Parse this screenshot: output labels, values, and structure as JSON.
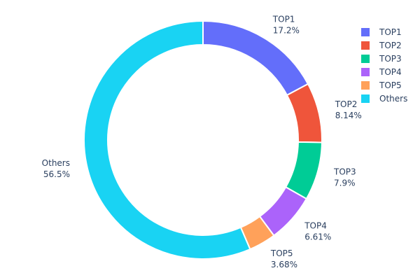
{
  "chart_data": {
    "type": "pie",
    "hole": true,
    "categories": [
      "TOP1",
      "TOP2",
      "TOP3",
      "TOP4",
      "TOP5",
      "Others"
    ],
    "values": [
      17.2,
      8.14,
      7.9,
      6.61,
      3.68,
      56.5
    ],
    "percent_labels": [
      "17.2%",
      "8.14%",
      "7.9%",
      "6.61%",
      "3.68%",
      "56.5%"
    ],
    "colors": [
      "#636efa",
      "#EF553B",
      "#00cc96",
      "#ab63fa",
      "#FFA15A",
      "#19d3f3"
    ],
    "legend_position": "top-right",
    "direction": "clockwise",
    "start": "top"
  }
}
